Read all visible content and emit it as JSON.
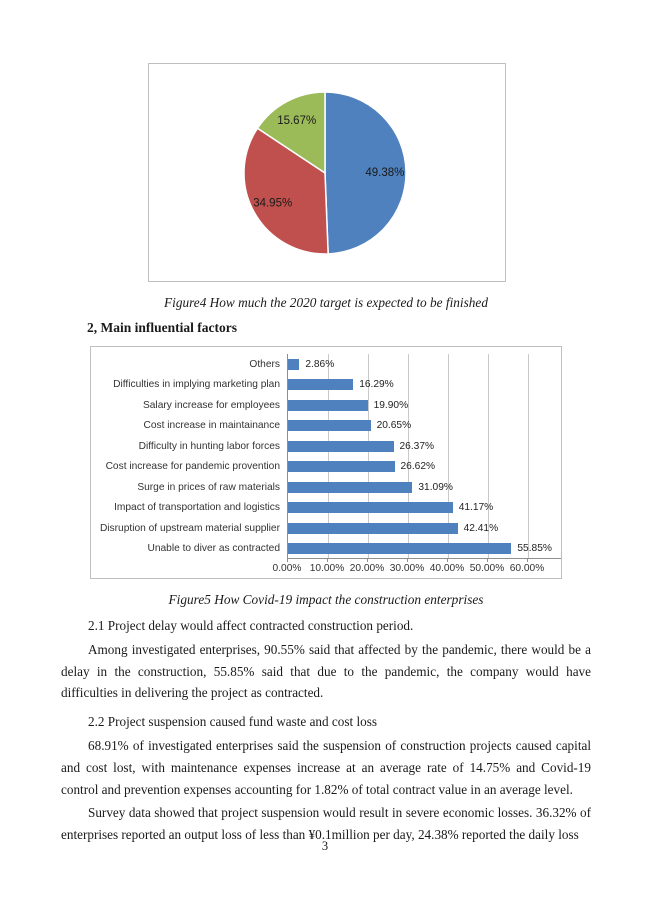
{
  "page": {
    "number": "3"
  },
  "figure4": {
    "caption": "Figure4 How much the 2020 target is expected to be finished"
  },
  "section": {
    "heading": "2, Main influential factors"
  },
  "figure5": {
    "caption": "Figure5 How Covid-19 impact the construction enterprises"
  },
  "paragraphs": [
    "2.1 Project delay would affect contracted construction period.",
    "Among investigated enterprises, 90.55% said that affected by the pandemic, there would be a delay in the construction, 55.85% said that due to the pandemic, the company would have difficulties in delivering the project as contracted.",
    "2.2 Project suspension caused fund waste and cost loss",
    "68.91% of investigated enterprises said the suspension of construction projects caused capital and cost lost, with maintenance expenses increase at an average rate of 14.75% and Covid-19 control and prevention expenses accounting for 1.82% of total contract value in an average level.",
    "Survey data showed that project suspension would result in severe economic losses. 36.32% of enterprises reported an output loss of less than ¥0.1million per day, 24.38% reported the daily loss"
  ],
  "colors": {
    "pie_blue": "#4E81BD",
    "pie_red": "#C0504D",
    "pie_green": "#9BBB59",
    "bar_blue": "#4E81BD",
    "gridline": "#c9c9c9",
    "axis": "#8e8e8e",
    "frame_border": "#bfbfbf"
  },
  "chart_data": [
    {
      "type": "pie",
      "title": "",
      "legend": "none",
      "start_angle_deg": 0,
      "direction": "clockwise",
      "slices": [
        {
          "display_label": "49.38%",
          "value": 49.38,
          "color": "#4E81BD"
        },
        {
          "display_label": "34.95%",
          "value": 34.95,
          "color": "#C0504D"
        },
        {
          "display_label": "15.67%",
          "value": 15.67,
          "color": "#9BBB59"
        }
      ]
    },
    {
      "type": "bar",
      "orientation": "horizontal",
      "title": "",
      "legend": "none",
      "grid": true,
      "bar_color": "#4E81BD",
      "xlim": [
        0,
        60
      ],
      "xtick_step": 10,
      "xticks": [
        "0.00%",
        "10.00%",
        "20.00%",
        "30.00%",
        "40.00%",
        "50.00%",
        "60.00%"
      ],
      "categories": [
        "Others",
        "Difficulties in implying marketing plan",
        "Salary increase for employees",
        "Cost increase in maintainance",
        "Difficulty in hunting labor forces",
        "Cost increase for pandemic provention",
        "Surge in prices of raw materials",
        "Impact of transportation and logistics",
        "Disruption of upstream material supplier",
        "Unable to diver as contracted"
      ],
      "values": [
        2.86,
        16.29,
        19.9,
        20.65,
        26.37,
        26.62,
        31.09,
        41.17,
        42.41,
        55.85
      ],
      "value_labels": [
        "2.86%",
        "16.29%",
        "19.90%",
        "20.65%",
        "26.37%",
        "26.62%",
        "31.09%",
        "41.17%",
        "42.41%",
        "55.85%"
      ]
    }
  ]
}
